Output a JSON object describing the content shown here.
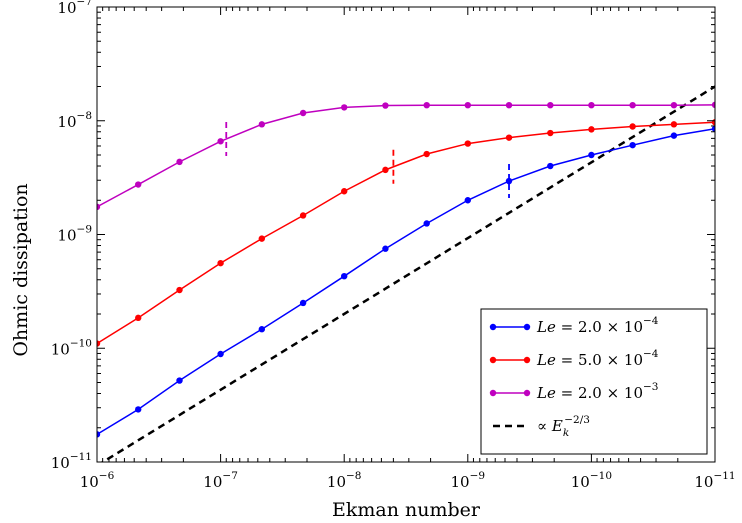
{
  "chart_data": {
    "type": "line",
    "x_scale": "log",
    "y_scale": "log",
    "x_reversed": true,
    "xlabel": "Ekman number",
    "ylabel": "Ohmic dissipation",
    "xlim": [
      1e-06,
      1e-11
    ],
    "ylim": [
      1e-11,
      1e-07
    ],
    "x_ticks": [
      {
        "value": 1e-06,
        "base": "10",
        "exp": "−6"
      },
      {
        "value": 1e-07,
        "base": "10",
        "exp": "−7"
      },
      {
        "value": 1e-08,
        "base": "10",
        "exp": "−8"
      },
      {
        "value": 1e-09,
        "base": "10",
        "exp": "−9"
      },
      {
        "value": 1e-10,
        "base": "10",
        "exp": "−10"
      },
      {
        "value": 1e-11,
        "base": "10",
        "exp": "−11"
      }
    ],
    "y_ticks": [
      {
        "value": 1e-11,
        "base": "10",
        "exp": "−11"
      },
      {
        "value": 1e-10,
        "base": "10",
        "exp": "−10"
      },
      {
        "value": 1e-09,
        "base": "10",
        "exp": "−9"
      },
      {
        "value": 1e-08,
        "base": "10",
        "exp": "−8"
      },
      {
        "value": 1e-07,
        "base": "10",
        "exp": "−7"
      }
    ],
    "grid": false,
    "legend_position": "lower-right",
    "series": [
      {
        "name": "Le = 2.0 × 10^−4",
        "legend": {
          "var": "Le",
          "eq": " = 2.0 × 10",
          "exp": "−4"
        },
        "color": "#0000ff",
        "x": [
          1e-06,
          4.64e-07,
          2.15e-07,
          1e-07,
          4.64e-08,
          2.15e-08,
          1e-08,
          4.64e-09,
          2.15e-09,
          1e-09,
          4.64e-10,
          2.15e-10,
          1e-10,
          4.64e-11,
          2.15e-11,
          1e-11
        ],
        "y": [
          1.75e-11,
          2.9e-11,
          5.2e-11,
          8.9e-11,
          1.47e-10,
          2.5e-10,
          4.3e-10,
          7.5e-10,
          1.25e-09,
          2e-09,
          2.95e-09,
          4e-09,
          5e-09,
          6.1e-09,
          7.4e-09,
          8.5e-09
        ],
        "transition_marker_x": 4.64e-10
      },
      {
        "name": "Le = 5.0 × 10^−4",
        "legend": {
          "var": "Le",
          "eq": " = 5.0 × 10",
          "exp": "−4"
        },
        "color": "#ff0000",
        "x": [
          1e-06,
          4.64e-07,
          2.15e-07,
          1e-07,
          4.64e-08,
          2.15e-08,
          1e-08,
          4.64e-09,
          2.15e-09,
          1e-09,
          4.64e-10,
          2.15e-10,
          1e-10,
          4.64e-11,
          2.15e-11,
          1e-11
        ],
        "y": [
          1.1e-10,
          1.85e-10,
          3.25e-10,
          5.6e-10,
          9.2e-10,
          1.47e-09,
          2.4e-09,
          3.7e-09,
          5.1e-09,
          6.3e-09,
          7.1e-09,
          7.8e-09,
          8.4e-09,
          8.9e-09,
          9.3e-09,
          9.7e-09
        ],
        "transition_marker_x": 4e-09
      },
      {
        "name": "Le = 2.0 × 10^−3",
        "legend": {
          "var": "Le",
          "eq": " = 2.0 × 10",
          "exp": "−3"
        },
        "color": "#bf00bf",
        "x": [
          1e-06,
          4.64e-07,
          2.15e-07,
          1e-07,
          4.64e-08,
          2.15e-08,
          1e-08,
          4.64e-09,
          2.15e-09,
          1e-09,
          4.64e-10,
          2.15e-10,
          1e-10,
          4.64e-11,
          2.15e-11,
          1e-11
        ],
        "y": [
          1.75e-09,
          2.75e-09,
          4.35e-09,
          6.6e-09,
          9.3e-09,
          1.17e-08,
          1.31e-08,
          1.36e-08,
          1.37e-08,
          1.37e-08,
          1.37e-08,
          1.37e-08,
          1.37e-08,
          1.37e-08,
          1.37e-08,
          1.38e-08
        ],
        "transition_marker_x": 9e-08
      }
    ],
    "reference_line": {
      "name": "∝ E_k^−2/3",
      "legend": {
        "prefix": "∝ ",
        "var": "E",
        "sub": "k",
        "exp": "−2/3"
      },
      "color": "#000000",
      "style": "dashed",
      "x": [
        1e-06,
        1e-11
      ],
      "y": [
        9.3e-12,
        2e-08
      ]
    }
  }
}
